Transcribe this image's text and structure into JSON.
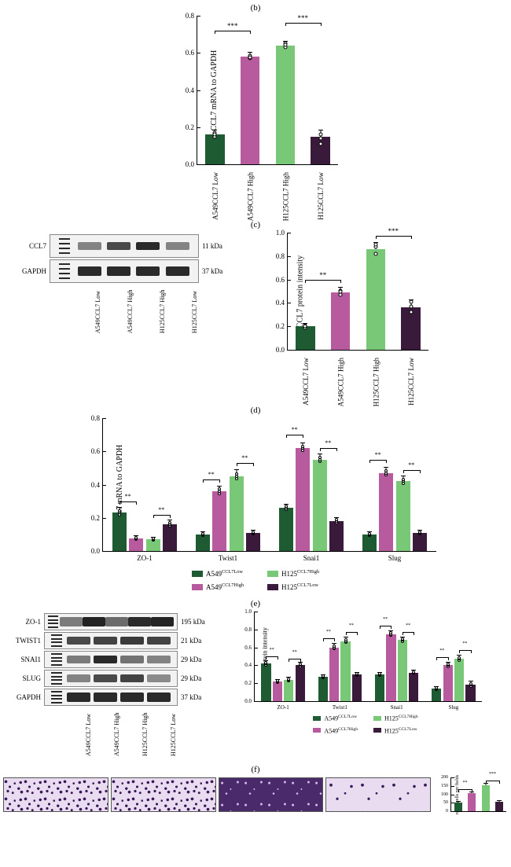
{
  "colors": {
    "a549_low": "#1e5a32",
    "a549_high": "#b85a9e",
    "h125_high": "#78c878",
    "h125_low": "#3a1a3a"
  },
  "labels": {
    "a549_low": "A549CCL7 Low",
    "a549_high": "A549CCL7 High",
    "h125_high": "H125CCL7 High",
    "h125_low": "H125CCL7 Low",
    "a549_low_sup": "A549<sup>CCL7Low</sup>",
    "a549_high_sup": "A549<sup>CCL7High</sup>",
    "h125_high_sup": "H125<sup>CCL7High</sup>",
    "h125_low_sup": "H125<sup>CCL7Low</sup>"
  },
  "panel_b": {
    "label": "(b)",
    "ylabel": "CCL7 mRNA to GAPDH",
    "ylim": [
      0,
      0.8
    ],
    "ytick_step": 0.2,
    "bars": [
      {
        "key": "a549_low",
        "val": 0.16,
        "err": 0.02,
        "dots": [
          0.15,
          0.17,
          0.16
        ]
      },
      {
        "key": "a549_high",
        "val": 0.58,
        "err": 0.02,
        "dots": [
          0.57,
          0.585,
          0.575
        ]
      },
      {
        "key": "h125_high",
        "val": 0.64,
        "err": 0.02,
        "dots": [
          0.63,
          0.65,
          0.645
        ]
      },
      {
        "key": "h125_low",
        "val": 0.15,
        "err": 0.03,
        "dots": [
          0.14,
          0.16,
          0.11
        ]
      }
    ],
    "sig": [
      {
        "from": 0,
        "to": 1,
        "stars": "***",
        "y": 0.72
      },
      {
        "from": 2,
        "to": 3,
        "stars": "***",
        "y": 0.76
      }
    ]
  },
  "panel_c": {
    "label": "(c)",
    "blots": [
      {
        "name": "CCL7",
        "kda": "11 kDa",
        "bands": [
          0.35,
          0.7,
          0.9,
          0.35
        ],
        "h": 10
      },
      {
        "name": "GAPDH",
        "kda": "37 kDa",
        "bands": [
          0.9,
          0.9,
          0.9,
          0.9
        ],
        "h": 12
      }
    ],
    "chart": {
      "ylabel": "CCL7 protein intensity",
      "ylim": [
        0,
        1.0
      ],
      "ytick_step": 0.2,
      "bars": [
        {
          "key": "a549_low",
          "val": 0.2,
          "err": 0.02,
          "dots": [
            0.19,
            0.21,
            0.2
          ]
        },
        {
          "key": "a549_high",
          "val": 0.49,
          "err": 0.04,
          "dots": [
            0.47,
            0.505,
            0.5
          ]
        },
        {
          "key": "h125_high",
          "val": 0.86,
          "err": 0.05,
          "dots": [
            0.82,
            0.88,
            0.9
          ]
        },
        {
          "key": "h125_low",
          "val": 0.36,
          "err": 0.06,
          "dots": [
            0.32,
            0.37,
            0.41
          ]
        }
      ],
      "sig": [
        {
          "from": 0,
          "to": 1,
          "stars": "**",
          "y": 0.6
        },
        {
          "from": 2,
          "to": 3,
          "stars": "***",
          "y": 0.97
        }
      ]
    }
  },
  "panel_d": {
    "label": "(d)",
    "ylabel": "CCL7 mRNA to GAPDH",
    "ylim": [
      0,
      0.8
    ],
    "ytick_step": 0.2,
    "groups": [
      "ZO-1",
      "Twist1",
      "Snai1",
      "Slug"
    ],
    "series_order": [
      "a549_low",
      "a549_high",
      "h125_high",
      "h125_low"
    ],
    "values": {
      "ZO-1": [
        0.23,
        0.075,
        0.07,
        0.16
      ],
      "Twist1": [
        0.1,
        0.36,
        0.45,
        0.11
      ],
      "Snai1": [
        0.26,
        0.62,
        0.55,
        0.18
      ],
      "Slug": [
        0.1,
        0.47,
        0.42,
        0.11
      ]
    },
    "errs": {
      "ZO-1": [
        0.03,
        0.015,
        0.01,
        0.025
      ],
      "Twist1": [
        0.015,
        0.03,
        0.04,
        0.015
      ],
      "Snai1": [
        0.02,
        0.03,
        0.03,
        0.02
      ],
      "Slug": [
        0.015,
        0.03,
        0.03,
        0.015
      ]
    },
    "sig_pairs": [
      {
        "g": "ZO-1",
        "a": 0,
        "b": 1,
        "stars": "**",
        "y": 0.3
      },
      {
        "g": "ZO-1",
        "a": 2,
        "b": 3,
        "stars": "**",
        "y": 0.22
      },
      {
        "g": "Twist1",
        "a": 0,
        "b": 1,
        "stars": "**",
        "y": 0.43
      },
      {
        "g": "Twist1",
        "a": 2,
        "b": 3,
        "stars": "**",
        "y": 0.53
      },
      {
        "g": "Snai1",
        "a": 0,
        "b": 1,
        "stars": "**",
        "y": 0.7
      },
      {
        "g": "Snai1",
        "a": 2,
        "b": 3,
        "stars": "**",
        "y": 0.62
      },
      {
        "g": "Slug",
        "a": 0,
        "b": 1,
        "stars": "**",
        "y": 0.55
      },
      {
        "g": "Slug",
        "a": 2,
        "b": 3,
        "stars": "**",
        "y": 0.49
      }
    ]
  },
  "panel_e": {
    "label": "(e)",
    "blots": [
      {
        "name": "ZO-1",
        "kda": "195 kDa",
        "bands": [
          0.4,
          0.95,
          0.5,
          0.9,
          0.95
        ],
        "fivecol": true,
        "h": 12
      },
      {
        "name": "TWIST1",
        "kda": "21 kDa",
        "bands": [
          0.7,
          0.75,
          0.8,
          0.75
        ],
        "h": 10
      },
      {
        "name": "SNAI1",
        "kda": "29 kDa",
        "bands": [
          0.4,
          0.9,
          0.45,
          0.35
        ],
        "h": 10
      },
      {
        "name": "SLUG",
        "kda": "29 kDa",
        "bands": [
          0.35,
          0.7,
          0.75,
          0.3
        ],
        "h": 10
      },
      {
        "name": "GAPDH",
        "kda": "37 kDa",
        "bands": [
          0.9,
          0.9,
          0.9,
          0.9
        ],
        "h": 12
      }
    ],
    "chart": {
      "ylabel": "CCL7 protein intensity",
      "ylim": [
        0,
        1.0
      ],
      "ytick_step": 0.2,
      "groups": [
        "ZO-1",
        "Twist1",
        "Snai1",
        "Slug"
      ],
      "series_order": [
        "a549_low",
        "a549_high",
        "h125_high",
        "h125_low"
      ],
      "values": {
        "ZO-1": [
          0.42,
          0.22,
          0.24,
          0.4
        ],
        "Twist1": [
          0.27,
          0.6,
          0.67,
          0.3
        ],
        "Snai1": [
          0.3,
          0.75,
          0.68,
          0.32
        ],
        "Slug": [
          0.14,
          0.4,
          0.47,
          0.18
        ]
      },
      "errs": {
        "ZO-1": [
          0.03,
          0.02,
          0.02,
          0.03
        ],
        "Twist1": [
          0.02,
          0.04,
          0.04,
          0.02
        ],
        "Snai1": [
          0.02,
          0.03,
          0.03,
          0.02
        ],
        "Slug": [
          0.02,
          0.03,
          0.04,
          0.04
        ]
      },
      "sig_pairs": [
        {
          "g": "ZO-1",
          "a": 0,
          "b": 1,
          "stars": "**",
          "y": 0.5
        },
        {
          "g": "ZO-1",
          "a": 2,
          "b": 3,
          "stars": "**",
          "y": 0.47
        },
        {
          "g": "Twist1",
          "a": 0,
          "b": 1,
          "stars": "**",
          "y": 0.7
        },
        {
          "g": "Twist1",
          "a": 2,
          "b": 3,
          "stars": "**",
          "y": 0.77
        },
        {
          "g": "Snai1",
          "a": 0,
          "b": 1,
          "stars": "**",
          "y": 0.84
        },
        {
          "g": "Snai1",
          "a": 2,
          "b": 3,
          "stars": "**",
          "y": 0.77
        },
        {
          "g": "Slug",
          "a": 0,
          "b": 1,
          "stars": "**",
          "y": 0.49
        },
        {
          "g": "Slug",
          "a": 2,
          "b": 3,
          "stars": "**",
          "y": 0.57
        }
      ]
    }
  },
  "panel_f": {
    "label": "(f)",
    "images": [
      {
        "density": "dense"
      },
      {
        "density": "dense"
      },
      {
        "density": "verydense"
      },
      {
        "density": "sparse"
      }
    ],
    "chart": {
      "ylabel": "rative cells per fields",
      "ylim": [
        0,
        200
      ],
      "ytick_step": 50,
      "bars": [
        {
          "key": "a549_low",
          "val": 50,
          "err": 6
        },
        {
          "key": "a549_high",
          "val": 105,
          "err": 8
        },
        {
          "key": "h125_high",
          "val": 155,
          "err": 10
        },
        {
          "key": "h125_low",
          "val": 55,
          "err": 6
        }
      ],
      "sig": [
        {
          "from": 0,
          "to": 1,
          "stars": "**",
          "y": 130
        },
        {
          "from": 2,
          "to": 3,
          "stars": "***",
          "y": 180
        }
      ]
    }
  }
}
